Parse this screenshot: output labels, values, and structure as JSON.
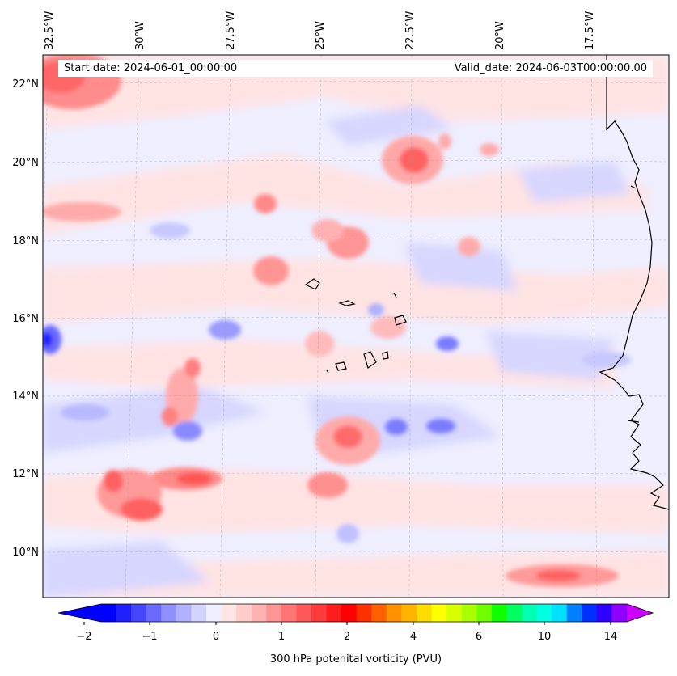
{
  "map": {
    "start_date_text": "Start date: 2024-06-01_00:00:00",
    "valid_date_text": "Valid_date: 2024-06-03T00:00:00.00",
    "longitude_labels": [
      "32.5°W",
      "30°W",
      "27.5°W",
      "25°W",
      "22.5°W",
      "20°W",
      "17.5°W"
    ],
    "latitude_labels": [
      "22°N",
      "20°N",
      "18°N",
      "16°N",
      "14°N",
      "12°N",
      "10°N"
    ]
  },
  "colorbar": {
    "label": "300 hPa potenital vorticity (PVU)",
    "tick_labels": [
      "−2",
      "−1",
      "0",
      "1",
      "2",
      "4",
      "6",
      "10",
      "14"
    ],
    "colors": [
      "#0000ff",
      "#2020ff",
      "#4545ff",
      "#6a6aff",
      "#8f8fff",
      "#b0b0ff",
      "#d3d3ff",
      "#eeeeff",
      "#ffe6e6",
      "#ffcccc",
      "#ffb0b0",
      "#ff9494",
      "#ff7575",
      "#ff5858",
      "#ff3a3a",
      "#ff1c1c",
      "#ff0000",
      "#ff3000",
      "#ff6000",
      "#ff9000",
      "#ffb500",
      "#ffdc00",
      "#ffff00",
      "#d8ff00",
      "#a8ff00",
      "#70ff00",
      "#10ff00",
      "#00ff60",
      "#00ffb0",
      "#00ffe0",
      "#00e0ff",
      "#0080ff",
      "#0030ff",
      "#3000ff",
      "#9000ff"
    ],
    "extend_min_color": "#0000ff",
    "extend_max_color": "#cc00ff"
  },
  "colors": {
    "background_low_pv": "#eeeeff",
    "coastline": "#000000"
  }
}
